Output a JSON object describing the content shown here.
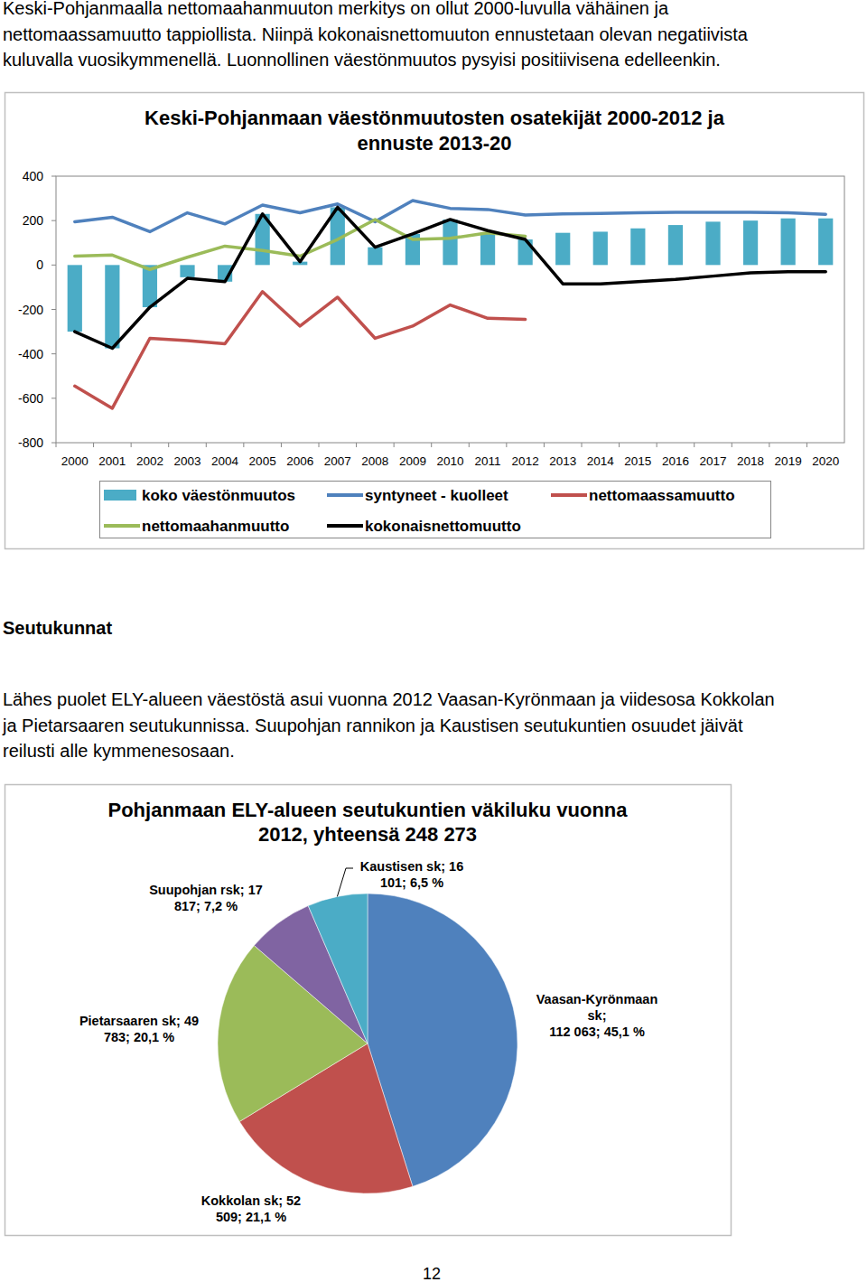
{
  "document": {
    "intro": [
      "Keski-Pohjanmaalla nettomaahanmuuton merkitys on ollut 2000-luvulla vähäinen ja",
      "nettomaassamuutto tappiollista. Niinpä kokonaisnettomuuton ennustetaan olevan negatiivista",
      "kuluvalla vuosikymmenellä. Luonnollinen väestönmuutos pysyisi positiivisena edelleenkin."
    ],
    "heading": "Seutukunnat",
    "paragraph": [
      "Lähes puolet ELY-alueen väestöstä asui vuonna 2012 Vaasan-Kyrönmaan ja viidesosa Kokkolan",
      "ja Pietarsaaren seutukunnissa. Suupohjan rannikon ja Kaustisen seutukuntien osuudet jäivät",
      "reilusti alle kymmenesosaan."
    ],
    "page_number": "12"
  },
  "chart_data": [
    {
      "type": "bar",
      "title": "Keski-Pohjanmaan väestönmuutosten osatekijät 2000-2012 ja\nennuste 2013-20",
      "categories": [
        "2000",
        "2001",
        "2002",
        "2003",
        "2004",
        "2005",
        "2006",
        "2007",
        "2008",
        "2009",
        "2010",
        "2011",
        "2012",
        "2013",
        "2014",
        "2015",
        "2016",
        "2017",
        "2018",
        "2019",
        "2020"
      ],
      "series": [
        {
          "name": "koko väestönmuutos",
          "type": "bar",
          "color": "#4bacc6",
          "values": [
            -300,
            -375,
            -190,
            -55,
            -75,
            230,
            15,
            260,
            80,
            140,
            205,
            145,
            115,
            145,
            150,
            165,
            180,
            195,
            200,
            210,
            210
          ]
        },
        {
          "name": "syntyneet - kuolleet",
          "type": "line",
          "color": "#4f81bd",
          "values": [
            195,
            215,
            150,
            235,
            185,
            270,
            235,
            275,
            195,
            290,
            255,
            250,
            225,
            230,
            232,
            235,
            237,
            237,
            237,
            235,
            228
          ]
        },
        {
          "name": "nettomaassamuutto",
          "type": "line",
          "color": "#c0504d",
          "values": [
            -545,
            -645,
            -330,
            -340,
            -355,
            -120,
            -275,
            -145,
            -330,
            -275,
            -180,
            -240,
            -245,
            null,
            null,
            null,
            null,
            null,
            null,
            null,
            null
          ]
        },
        {
          "name": "nettomaahanmuutto",
          "type": "line",
          "color": "#9bbb59",
          "values": [
            40,
            45,
            -20,
            35,
            85,
            65,
            40,
            115,
            205,
            115,
            120,
            145,
            130,
            null,
            null,
            null,
            null,
            null,
            null,
            null,
            null
          ]
        },
        {
          "name": "kokonaisnettomuutto",
          "type": "line",
          "color": "#000000",
          "values": [
            -300,
            -375,
            -190,
            -60,
            -75,
            230,
            15,
            260,
            80,
            140,
            205,
            155,
            115,
            -85,
            -85,
            -75,
            -65,
            -50,
            -35,
            -30,
            -30
          ]
        }
      ],
      "ylim": [
        -800,
        400
      ],
      "yticks": [
        -800,
        -600,
        -400,
        -200,
        0,
        200,
        400
      ],
      "grid": false,
      "legend": "bottom"
    },
    {
      "type": "pie",
      "title": "Pohjanmaan ELY-alueen seutukuntien väkiluku vuonna\n2012, yhteensä 248 273",
      "labels": [
        "Vaasan-Kyrönmaan\nsk;\n112 063; 45,1 %",
        "Kokkolan sk; 52\n509; 21,1 %",
        "Pietarsaaren sk; 49\n783; 20,1 %",
        "Suupohjan rsk; 17\n817; 7,2 %",
        "Kaustisen sk; 16\n101; 6,5 %"
      ],
      "values": [
        112063,
        52509,
        49783,
        17817,
        16101
      ],
      "colors": [
        "#4f81bd",
        "#c0504d",
        "#9bbb59",
        "#8064a2",
        "#4bacc6"
      ]
    }
  ]
}
